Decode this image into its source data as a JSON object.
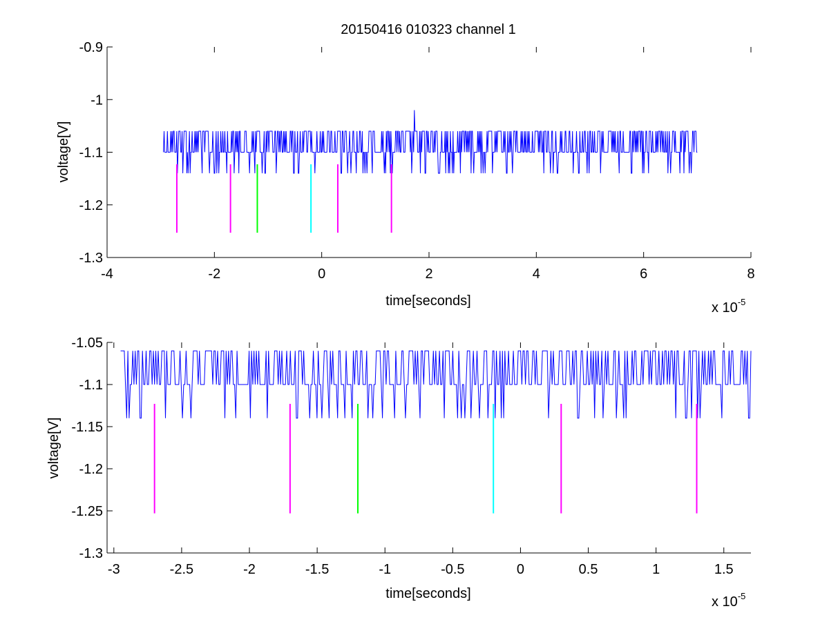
{
  "figure": {
    "title": "20150416 010323 channel 1"
  },
  "chart_data": [
    {
      "type": "line",
      "xlabel": "time[seconds]",
      "ylabel": "voltage[V]",
      "x_multiplier_base": "x 10",
      "x_multiplier_exp": "-5",
      "xlim": [
        -4,
        8
      ],
      "ylim": [
        -1.3,
        -0.9
      ],
      "xticks": [
        -4,
        -2,
        0,
        2,
        4,
        6,
        8
      ],
      "xtick_labels": [
        "-4",
        "-2",
        "0",
        "2",
        "4",
        "6",
        "8"
      ],
      "yticks": [
        -1.3,
        -1.2,
        -1.1,
        -1,
        -0.9
      ],
      "ytick_labels": [
        "-1.3",
        "-1.2",
        "-1.1",
        "-1",
        "-0.9"
      ],
      "grid": false,
      "signal": {
        "color": "#0000ff",
        "x_start": -2.95,
        "x_end": 7.0,
        "levels": [
          -1.14,
          -1.1,
          -1.06
        ],
        "baseline": -1.1,
        "spike": {
          "x": 1.73,
          "y": -1.02
        }
      },
      "markers": [
        {
          "x": -2.7,
          "y_top": -1.123,
          "y_bottom": -1.253,
          "color": "#ff00ff"
        },
        {
          "x": -1.7,
          "y_top": -1.123,
          "y_bottom": -1.253,
          "color": "#ff00ff"
        },
        {
          "x": -1.2,
          "y_top": -1.123,
          "y_bottom": -1.253,
          "color": "#00ff00"
        },
        {
          "x": -0.2,
          "y_top": -1.123,
          "y_bottom": -1.253,
          "color": "#00ffff"
        },
        {
          "x": 0.3,
          "y_top": -1.123,
          "y_bottom": -1.253,
          "color": "#ff00ff"
        },
        {
          "x": 1.3,
          "y_top": -1.123,
          "y_bottom": -1.253,
          "color": "#ff00ff"
        }
      ]
    },
    {
      "type": "line",
      "xlabel": "time[seconds]",
      "ylabel": "voltage[V]",
      "x_multiplier_base": "x 10",
      "x_multiplier_exp": "-5",
      "xlim": [
        -3.05,
        1.7
      ],
      "ylim": [
        -1.3,
        -1.05
      ],
      "xticks": [
        -3,
        -2.5,
        -2,
        -1.5,
        -1,
        -0.5,
        0,
        0.5,
        1,
        1.5
      ],
      "xtick_labels": [
        "-3",
        "-2.5",
        "-2",
        "-1.5",
        "-1",
        "-0.5",
        "0",
        "0.5",
        "1",
        "1.5"
      ],
      "yticks": [
        -1.3,
        -1.25,
        -1.2,
        -1.15,
        -1.1,
        -1.05
      ],
      "ytick_labels": [
        "-1.3",
        "-1.25",
        "-1.2",
        "-1.15",
        "-1.1",
        "-1.05"
      ],
      "grid": false,
      "signal": {
        "color": "#0000ff",
        "x_start": -2.95,
        "x_end": 1.7,
        "levels": [
          -1.14,
          -1.1,
          -1.06
        ],
        "baseline": -1.1
      },
      "markers": [
        {
          "x": -2.7,
          "y_top": -1.123,
          "y_bottom": -1.253,
          "color": "#ff00ff"
        },
        {
          "x": -1.7,
          "y_top": -1.123,
          "y_bottom": -1.253,
          "color": "#ff00ff"
        },
        {
          "x": -1.2,
          "y_top": -1.123,
          "y_bottom": -1.253,
          "color": "#00ff00"
        },
        {
          "x": -0.2,
          "y_top": -1.123,
          "y_bottom": -1.253,
          "color": "#00ffff"
        },
        {
          "x": 0.3,
          "y_top": -1.123,
          "y_bottom": -1.253,
          "color": "#ff00ff"
        },
        {
          "x": 1.3,
          "y_top": -1.123,
          "y_bottom": -1.253,
          "color": "#ff00ff"
        }
      ]
    }
  ]
}
